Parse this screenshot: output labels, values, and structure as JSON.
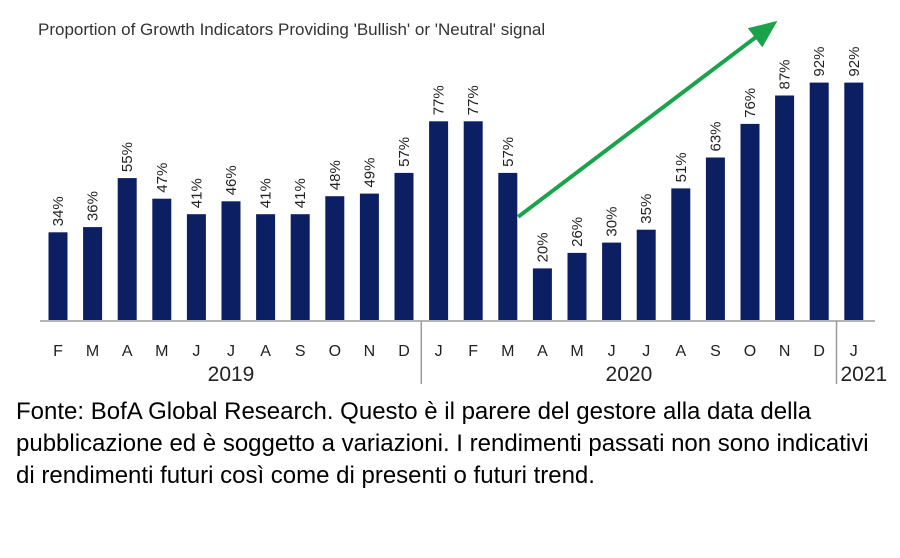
{
  "chart_data": {
    "type": "bar",
    "title": "Proportion of Growth Indicators Providing 'Bullish' or 'Neutral' signal",
    "categories": [
      "F",
      "M",
      "A",
      "M",
      "J",
      "J",
      "A",
      "S",
      "O",
      "N",
      "D",
      "J",
      "F",
      "M",
      "A",
      "M",
      "J",
      "J",
      "A",
      "S",
      "O",
      "N",
      "D",
      "J"
    ],
    "values": [
      34,
      36,
      55,
      47,
      41,
      46,
      41,
      41,
      48,
      49,
      57,
      77,
      77,
      57,
      20,
      26,
      30,
      35,
      51,
      63,
      76,
      87,
      92,
      92
    ],
    "value_labels": [
      "34%",
      "36%",
      "55%",
      "47%",
      "41%",
      "46%",
      "41%",
      "41%",
      "48%",
      "49%",
      "57%",
      "77%",
      "77%",
      "57%",
      "20%",
      "26%",
      "30%",
      "35%",
      "51%",
      "63%",
      "76%",
      "87%",
      "92%",
      "92%"
    ],
    "year_groups": [
      {
        "label": "2019",
        "start": 0,
        "end": 10
      },
      {
        "label": "2020",
        "start": 11,
        "end": 22
      },
      {
        "label": "2021",
        "start": 23,
        "end": 23
      }
    ],
    "ylim": [
      0,
      100
    ],
    "grid": false,
    "bar_color": "#0d1f63",
    "arrow_color": "#1aa34a",
    "annotation": "trend arrow from Apr 2020 up toward Jan 2021"
  },
  "caption": "Fonte: BofA Global Research. Questo è il parere del gestore alla data della pubblicazione ed è soggetto a variazioni. I rendimenti passati non sono indicativi di rendimenti futuri così come di presenti o futuri trend."
}
